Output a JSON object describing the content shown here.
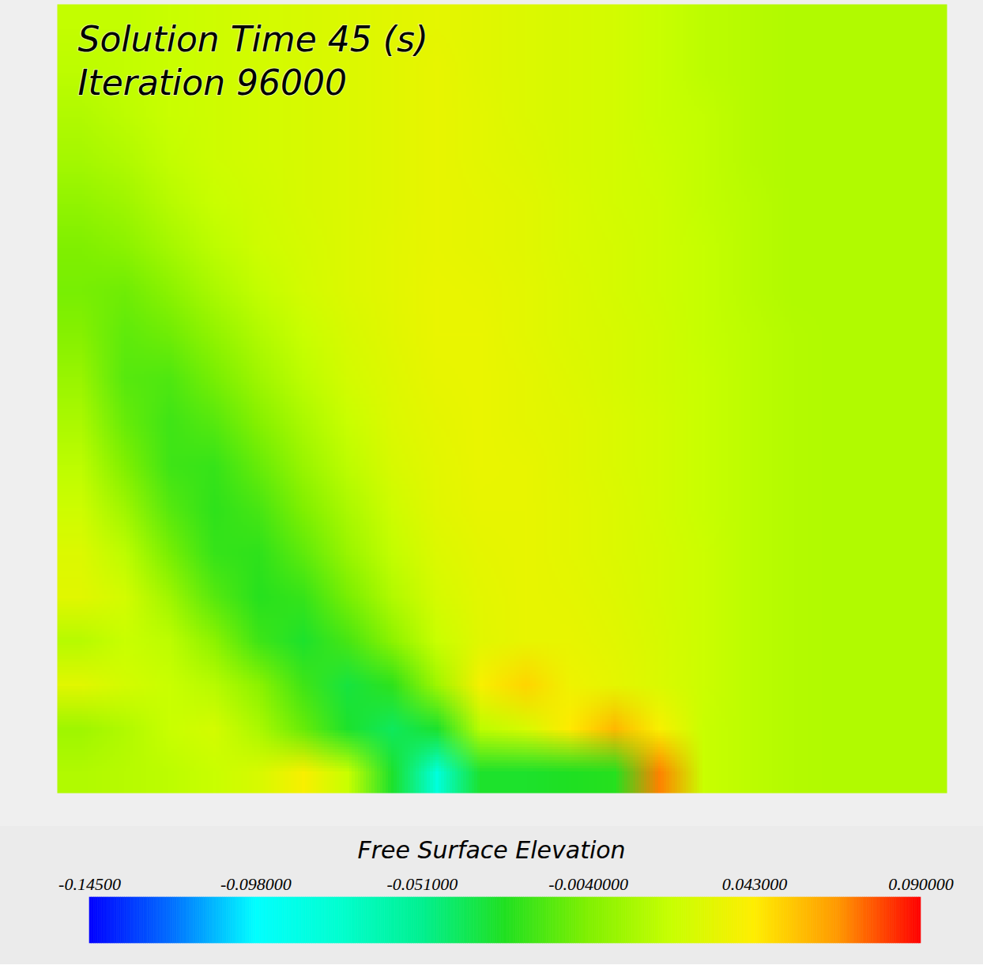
{
  "chart_data": {
    "type": "heatmap",
    "annotations": [
      "Solution Time 45 (s)",
      "Iteration 96000"
    ],
    "tick_labels": false,
    "values": [
      [
        0.018,
        0.018,
        0.02,
        0.022,
        0.024,
        0.026,
        0.028,
        0.03,
        0.032,
        0.03,
        0.028,
        0.026,
        0.024,
        0.02,
        0.016,
        0.014,
        0.012,
        0.012,
        0.012,
        0.012
      ],
      [
        0.016,
        0.018,
        0.02,
        0.022,
        0.024,
        0.026,
        0.028,
        0.03,
        0.033,
        0.03,
        0.028,
        0.026,
        0.024,
        0.02,
        0.016,
        0.014,
        0.012,
        0.012,
        0.012,
        0.012
      ],
      [
        0.012,
        0.016,
        0.02,
        0.022,
        0.024,
        0.026,
        0.028,
        0.03,
        0.033,
        0.031,
        0.028,
        0.026,
        0.024,
        0.02,
        0.018,
        0.014,
        0.012,
        0.012,
        0.012,
        0.012
      ],
      [
        0.008,
        0.012,
        0.018,
        0.022,
        0.024,
        0.026,
        0.028,
        0.03,
        0.033,
        0.031,
        0.029,
        0.026,
        0.024,
        0.021,
        0.018,
        0.014,
        0.012,
        0.012,
        0.012,
        0.012
      ],
      [
        0.002,
        0.006,
        0.014,
        0.02,
        0.023,
        0.026,
        0.028,
        0.03,
        0.033,
        0.032,
        0.03,
        0.027,
        0.024,
        0.022,
        0.018,
        0.015,
        0.012,
        0.012,
        0.012,
        0.012
      ],
      [
        -0.004,
        0.0,
        0.008,
        0.016,
        0.022,
        0.025,
        0.028,
        0.031,
        0.033,
        0.032,
        0.03,
        0.027,
        0.025,
        0.022,
        0.019,
        0.015,
        0.012,
        0.012,
        0.012,
        0.012
      ],
      [
        -0.006,
        -0.008,
        0.0,
        0.01,
        0.018,
        0.024,
        0.028,
        0.031,
        0.034,
        0.033,
        0.031,
        0.028,
        0.025,
        0.022,
        0.019,
        0.015,
        0.012,
        0.012,
        0.012,
        0.012
      ],
      [
        -0.002,
        -0.012,
        -0.008,
        0.002,
        0.012,
        0.02,
        0.026,
        0.03,
        0.034,
        0.034,
        0.031,
        0.028,
        0.026,
        0.023,
        0.019,
        0.016,
        0.013,
        0.012,
        0.012,
        0.012
      ],
      [
        0.004,
        -0.014,
        -0.016,
        -0.006,
        0.006,
        0.016,
        0.024,
        0.029,
        0.033,
        0.034,
        0.032,
        0.029,
        0.026,
        0.023,
        0.02,
        0.016,
        0.013,
        0.012,
        0.012,
        0.012
      ],
      [
        0.01,
        -0.01,
        -0.02,
        -0.014,
        -0.002,
        0.01,
        0.02,
        0.028,
        0.032,
        0.034,
        0.032,
        0.03,
        0.027,
        0.024,
        0.02,
        0.016,
        0.013,
        0.012,
        0.012,
        0.012
      ],
      [
        0.016,
        -0.004,
        -0.02,
        -0.022,
        -0.01,
        0.004,
        0.016,
        0.026,
        0.031,
        0.034,
        0.033,
        0.03,
        0.027,
        0.024,
        0.02,
        0.016,
        0.013,
        0.012,
        0.012,
        0.012
      ],
      [
        0.022,
        0.006,
        -0.014,
        -0.024,
        -0.018,
        -0.004,
        0.01,
        0.022,
        0.03,
        0.033,
        0.033,
        0.031,
        0.028,
        0.024,
        0.02,
        0.016,
        0.013,
        0.012,
        0.012,
        0.012
      ],
      [
        0.028,
        0.016,
        -0.006,
        -0.022,
        -0.024,
        -0.012,
        0.004,
        0.018,
        0.028,
        0.032,
        0.033,
        0.031,
        0.028,
        0.025,
        0.021,
        0.016,
        0.013,
        0.012,
        0.012,
        0.012
      ],
      [
        0.03,
        0.024,
        0.006,
        -0.014,
        -0.026,
        -0.022,
        -0.006,
        0.012,
        0.025,
        0.031,
        0.033,
        0.032,
        0.029,
        0.025,
        0.021,
        0.016,
        0.013,
        0.012,
        0.012,
        0.012
      ],
      [
        0.014,
        0.02,
        0.016,
        0.0,
        -0.02,
        -0.03,
        -0.018,
        0.0,
        0.02,
        0.03,
        0.033,
        0.033,
        0.03,
        0.026,
        0.021,
        0.016,
        0.013,
        0.012,
        0.012,
        0.012
      ],
      [
        0.03,
        0.024,
        0.02,
        0.014,
        0.0,
        -0.02,
        -0.034,
        -0.024,
        0.006,
        0.04,
        0.05,
        0.036,
        0.032,
        0.027,
        0.021,
        0.016,
        0.013,
        0.012,
        0.012,
        0.012
      ],
      [
        0.006,
        0.012,
        0.02,
        0.024,
        0.01,
        -0.01,
        -0.03,
        -0.04,
        -0.03,
        0.016,
        0.026,
        0.044,
        0.058,
        0.04,
        0.02,
        0.016,
        0.013,
        0.012,
        0.012,
        0.012
      ],
      [
        0.012,
        0.014,
        0.016,
        0.02,
        0.026,
        0.04,
        0.02,
        -0.03,
        -0.08,
        -0.03,
        -0.03,
        -0.028,
        -0.026,
        0.07,
        0.02,
        0.016,
        0.013,
        0.012,
        0.012,
        0.012
      ]
    ],
    "colorbar": {
      "label": "Free Surface Elevation",
      "range": [
        -0.145,
        0.09
      ],
      "ticks": [
        {
          "value": -0.145,
          "label": "-0.14500"
        },
        {
          "value": -0.098,
          "label": "-0.098000"
        },
        {
          "value": -0.051,
          "label": "-0.051000"
        },
        {
          "value": -0.004,
          "label": "-0.0040000"
        },
        {
          "value": 0.043,
          "label": "0.043000"
        },
        {
          "value": 0.09,
          "label": "0.090000"
        }
      ]
    }
  }
}
